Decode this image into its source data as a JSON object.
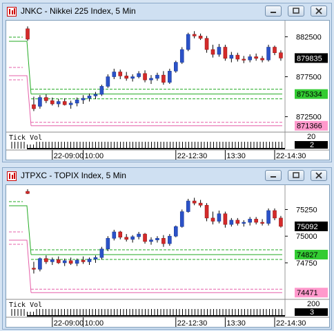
{
  "windows": [
    {
      "title": "JNKC - Nikkei 225 Index, 5 Min",
      "price_ticks": [
        {
          "label": "882500",
          "value": 882500
        },
        {
          "label": "877500",
          "value": 877500
        },
        {
          "label": "872500",
          "value": 872500
        }
      ],
      "y_range": [
        871000,
        884000
      ],
      "current_price": {
        "label": "879835",
        "value": 879835,
        "color": "#000000",
        "text_color": "#ffffff"
      },
      "green_level": {
        "label": "875334",
        "value": 875334,
        "color": "#33cc33",
        "text_color": "#000000"
      },
      "pink_level": {
        "label": "871366",
        "value": 871366,
        "color": "#ff99cc",
        "text_color": "#000000"
      },
      "tick_vol": {
        "label": "Tick Vol",
        "scale_label": "20",
        "current_label": "2"
      },
      "time_labels": [
        "22-09:00",
        "10:00",
        "22-12:30",
        "13:30",
        "22-14:30"
      ],
      "chart_data": {
        "type": "candlestick",
        "candles": [
          [
            883500,
            883800,
            882000,
            882200
          ],
          [
            874000,
            875000,
            873200,
            873500
          ],
          [
            873800,
            875200,
            873500,
            874900
          ],
          [
            874900,
            875300,
            874200,
            874500
          ],
          [
            874500,
            874900,
            873900,
            874100
          ],
          [
            874100,
            874700,
            873700,
            874400
          ],
          [
            874400,
            874800,
            873900,
            874000
          ],
          [
            874000,
            874500,
            873500,
            874200
          ],
          [
            874200,
            874900,
            873800,
            874600
          ],
          [
            874600,
            875200,
            874100,
            874800
          ],
          [
            874800,
            875400,
            874400,
            875100
          ],
          [
            875100,
            875600,
            874700,
            875300
          ],
          [
            875300,
            876500,
            875100,
            876300
          ],
          [
            876300,
            877800,
            876100,
            877500
          ],
          [
            877500,
            878500,
            877200,
            878100
          ],
          [
            878100,
            878400,
            877200,
            877600
          ],
          [
            877600,
            878100,
            877000,
            877300
          ],
          [
            877300,
            877800,
            876900,
            877500
          ],
          [
            877500,
            878200,
            877300,
            877900
          ],
          [
            877900,
            878300,
            876800,
            877100
          ],
          [
            877100,
            877700,
            876600,
            877300
          ],
          [
            877300,
            878000,
            877000,
            877700
          ],
          [
            877700,
            878200,
            876500,
            876800
          ],
          [
            876800,
            878500,
            876600,
            878200
          ],
          [
            878200,
            879500,
            878000,
            879300
          ],
          [
            879300,
            881200,
            879100,
            880900
          ],
          [
            880900,
            883000,
            880700,
            882800
          ],
          [
            882800,
            883200,
            882300,
            882600
          ],
          [
            882600,
            882900,
            882100,
            882300
          ],
          [
            882300,
            882600,
            880500,
            880900
          ],
          [
            880900,
            881500,
            879900,
            880300
          ],
          [
            880300,
            881600,
            880000,
            881200
          ],
          [
            881200,
            881500,
            879500,
            879800
          ],
          [
            879800,
            880600,
            879300,
            880200
          ],
          [
            880200,
            880500,
            879400,
            879700
          ],
          [
            879700,
            880100,
            879200,
            879600
          ],
          [
            879600,
            880300,
            879300,
            880000
          ],
          [
            880000,
            880400,
            879500,
            879800
          ],
          [
            879800,
            880100,
            879300,
            879600
          ],
          [
            879600,
            881500,
            879400,
            881200
          ],
          [
            881200,
            881400,
            880200,
            880500
          ],
          [
            880500,
            880800,
            879500,
            879835
          ]
        ]
      }
    },
    {
      "title": "JTPXC - TOPIX Index, 5 Min",
      "price_ticks": [
        {
          "label": "75250",
          "value": 75250
        },
        {
          "label": "75000",
          "value": 75000
        },
        {
          "label": "74750",
          "value": 74750
        }
      ],
      "y_range": [
        74440,
        75440
      ],
      "current_price": {
        "label": "75092",
        "value": 75092,
        "color": "#000000",
        "text_color": "#ffffff"
      },
      "green_level": {
        "label": "74827",
        "value": 74827,
        "color": "#33cc33",
        "text_color": "#000000"
      },
      "pink_level": {
        "label": "74471",
        "value": 74471,
        "color": "#ff99cc",
        "text_color": "#000000"
      },
      "tick_vol": {
        "label": "Tick Vol",
        "scale_label": "200",
        "current_label": "3"
      },
      "time_labels": [
        "22-09:00",
        "10:00",
        "22-12:30",
        "13:30",
        "22-14:30"
      ],
      "chart_data": {
        "type": "candlestick",
        "candles": [
          [
            75420,
            75440,
            75395,
            75400
          ],
          [
            74700,
            74760,
            74650,
            74690
          ],
          [
            74690,
            74800,
            74670,
            74790
          ],
          [
            74790,
            74820,
            74740,
            74760
          ],
          [
            74760,
            74800,
            74730,
            74780
          ],
          [
            74780,
            74810,
            74740,
            74750
          ],
          [
            74750,
            74790,
            74720,
            74770
          ],
          [
            74770,
            74800,
            74730,
            74745
          ],
          [
            74745,
            74790,
            74720,
            74775
          ],
          [
            74775,
            74810,
            74740,
            74760
          ],
          [
            74760,
            74800,
            74730,
            74785
          ],
          [
            74785,
            74820,
            74750,
            74800
          ],
          [
            74800,
            74900,
            74780,
            74880
          ],
          [
            74880,
            75000,
            74860,
            74980
          ],
          [
            74980,
            75060,
            74960,
            75040
          ],
          [
            75040,
            75050,
            74970,
            74990
          ],
          [
            74990,
            75020,
            74950,
            74970
          ],
          [
            74970,
            75010,
            74940,
            74995
          ],
          [
            74995,
            75040,
            74970,
            75020
          ],
          [
            75020,
            75030,
            74930,
            74950
          ],
          [
            74950,
            74990,
            74920,
            74965
          ],
          [
            74965,
            75000,
            74940,
            74980
          ],
          [
            74980,
            75010,
            74900,
            74930
          ],
          [
            74930,
            75020,
            74910,
            75000
          ],
          [
            75000,
            75100,
            74990,
            75090
          ],
          [
            75090,
            75250,
            75080,
            75230
          ],
          [
            75230,
            75350,
            75220,
            75330
          ],
          [
            75330,
            75360,
            75290,
            75310
          ],
          [
            75310,
            75340,
            75270,
            75290
          ],
          [
            75290,
            75310,
            75140,
            75170
          ],
          [
            75170,
            75230,
            75110,
            75140
          ],
          [
            75140,
            75240,
            75120,
            75210
          ],
          [
            75210,
            75230,
            75080,
            75110
          ],
          [
            75110,
            75170,
            75090,
            75150
          ],
          [
            75150,
            75170,
            75100,
            75120
          ],
          [
            75120,
            75150,
            75090,
            75130
          ],
          [
            75130,
            75180,
            75100,
            75160
          ],
          [
            75160,
            75180,
            75110,
            75130
          ],
          [
            75130,
            75160,
            75100,
            75120
          ],
          [
            75120,
            75260,
            75100,
            75240
          ],
          [
            75240,
            75260,
            75150,
            75170
          ],
          [
            75170,
            75190,
            75080,
            75092
          ]
        ]
      }
    }
  ]
}
